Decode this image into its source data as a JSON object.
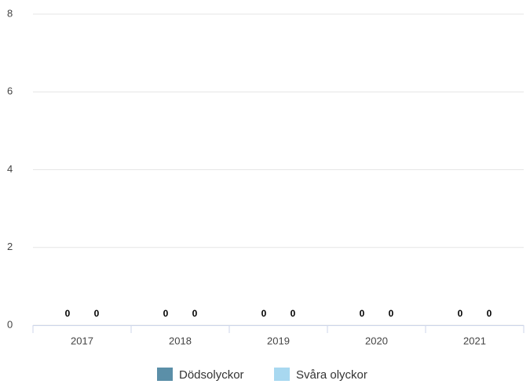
{
  "chart_data": {
    "type": "bar",
    "categories": [
      "2017",
      "2018",
      "2019",
      "2020",
      "2021"
    ],
    "series": [
      {
        "name": "Dödsolyckor",
        "color": "#5b8fa8",
        "values": [
          0,
          0,
          0,
          0,
          0
        ]
      },
      {
        "name": "Svåra olyckor",
        "color": "#a8d8f0",
        "values": [
          0,
          0,
          0,
          0,
          0
        ]
      }
    ],
    "ylim": [
      0,
      8
    ],
    "yticks": [
      0,
      2,
      4,
      6,
      8
    ],
    "grid": true,
    "legend": "bottom"
  }
}
